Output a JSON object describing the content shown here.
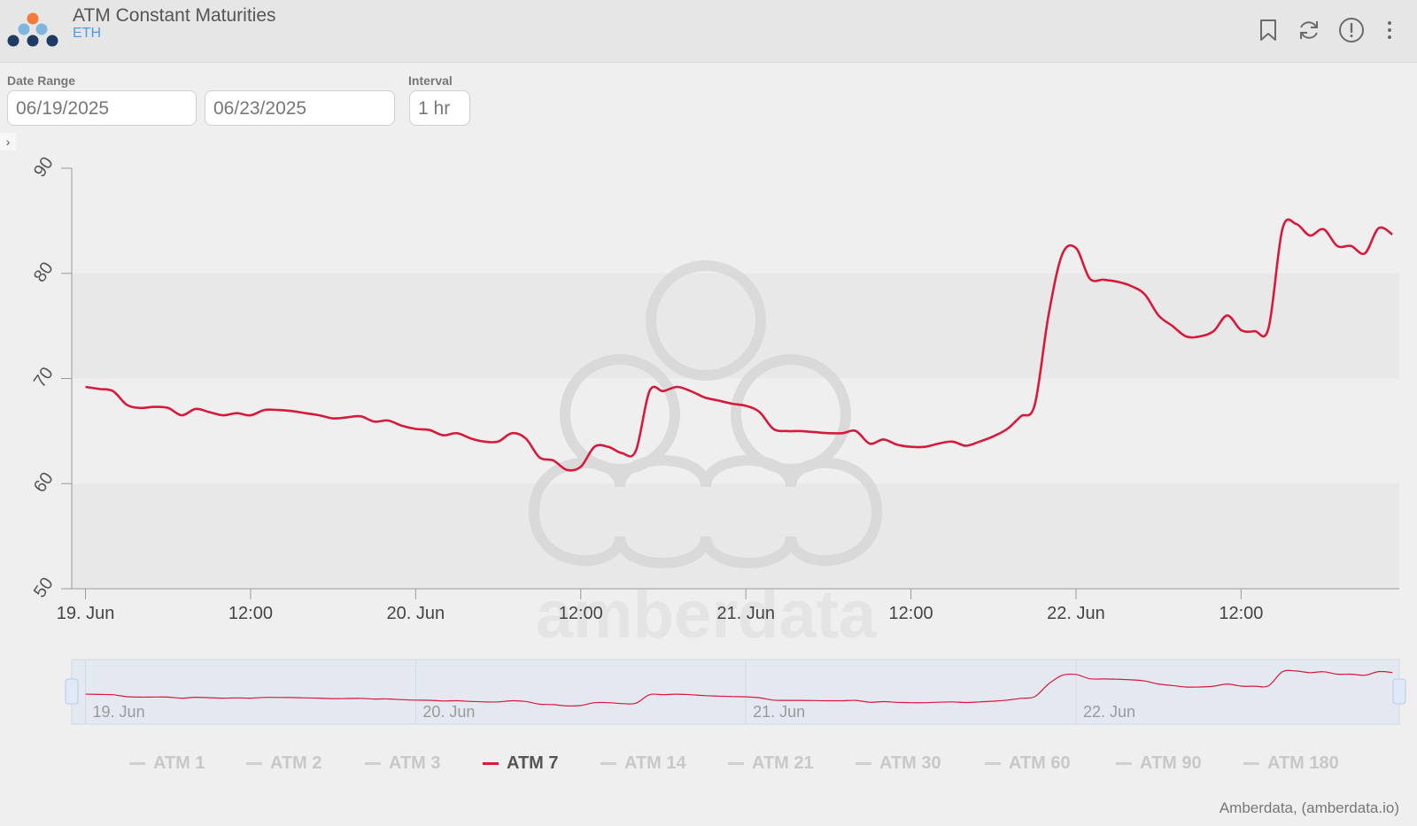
{
  "header": {
    "title": "ATM Constant Maturities",
    "subtitle": "ETH",
    "icons": [
      "bookmark-icon",
      "refresh-icon",
      "info-icon",
      "more-icon"
    ]
  },
  "controls": {
    "date_range_label": "Date Range",
    "start_date": "06/19/2025",
    "end_date": "06/23/2025",
    "interval_label": "Interval",
    "interval": "1 hr",
    "toggle_glyph": "›"
  },
  "watermark": "amberdata",
  "credit": "Amberdata, (amberdata.io)",
  "colors": {
    "series": "#d61a3c",
    "logo_orange": "#f07b3b",
    "logo_blue": "#7fb6e0",
    "logo_navy": "#1f3a63",
    "subtitle": "#4a9be8"
  },
  "chart_data": {
    "type": "line",
    "x_unit": "hours since 19. Jun 00:00",
    "xlim": [
      -1,
      95.5
    ],
    "ylim": [
      50,
      90
    ],
    "y_ticks": [
      50,
      60,
      70,
      80,
      90
    ],
    "x_ticks": [
      {
        "x": 0,
        "label": "19. Jun"
      },
      {
        "x": 12,
        "label": "12:00"
      },
      {
        "x": 24,
        "label": "20. Jun"
      },
      {
        "x": 36,
        "label": "12:00"
      },
      {
        "x": 48,
        "label": "21. Jun"
      },
      {
        "x": 60,
        "label": "12:00"
      },
      {
        "x": 72,
        "label": "22. Jun"
      },
      {
        "x": 84,
        "label": "12:00"
      }
    ],
    "navigator_labels": [
      {
        "x": 0,
        "label": "19. Jun"
      },
      {
        "x": 24,
        "label": "20. Jun"
      },
      {
        "x": 48,
        "label": "21. Jun"
      },
      {
        "x": 72,
        "label": "22. Jun"
      }
    ],
    "grid": "alternating horizontal bands",
    "legend": [
      "ATM 1",
      "ATM 2",
      "ATM 3",
      "ATM 7",
      "ATM 14",
      "ATM 21",
      "ATM 30",
      "ATM 60",
      "ATM 90",
      "ATM 180"
    ],
    "active_series": "ATM 7",
    "series": [
      {
        "name": "ATM 7",
        "color": "#d61a3c",
        "points": [
          [
            0,
            69.2
          ],
          [
            1,
            69.0
          ],
          [
            2,
            68.8
          ],
          [
            3,
            67.5
          ],
          [
            4,
            67.2
          ],
          [
            5,
            67.3
          ],
          [
            6,
            67.2
          ],
          [
            7,
            66.5
          ],
          [
            8,
            67.1
          ],
          [
            9,
            66.8
          ],
          [
            10,
            66.5
          ],
          [
            11,
            66.7
          ],
          [
            12,
            66.5
          ],
          [
            13,
            67.0
          ],
          [
            14,
            67.0
          ],
          [
            15,
            66.9
          ],
          [
            16,
            66.7
          ],
          [
            17,
            66.5
          ],
          [
            18,
            66.2
          ],
          [
            19,
            66.3
          ],
          [
            20,
            66.4
          ],
          [
            21,
            65.9
          ],
          [
            22,
            66.0
          ],
          [
            23,
            65.5
          ],
          [
            24,
            65.2
          ],
          [
            25,
            65.1
          ],
          [
            26,
            64.6
          ],
          [
            27,
            64.8
          ],
          [
            28,
            64.3
          ],
          [
            29,
            64.0
          ],
          [
            30,
            64.0
          ],
          [
            31,
            64.8
          ],
          [
            32,
            64.3
          ],
          [
            33,
            62.5
          ],
          [
            34,
            62.2
          ],
          [
            35,
            61.3
          ],
          [
            36,
            61.6
          ],
          [
            37,
            63.5
          ],
          [
            38,
            63.5
          ],
          [
            39,
            62.9
          ],
          [
            40,
            63.1
          ],
          [
            41,
            68.8
          ],
          [
            42,
            68.8
          ],
          [
            43,
            69.2
          ],
          [
            44,
            68.8
          ],
          [
            45,
            68.2
          ],
          [
            46,
            67.9
          ],
          [
            47,
            67.6
          ],
          [
            48,
            67.4
          ],
          [
            49,
            66.8
          ],
          [
            50,
            65.2
          ],
          [
            51,
            65.0
          ],
          [
            52,
            65.0
          ],
          [
            53,
            64.9
          ],
          [
            54,
            64.8
          ],
          [
            55,
            64.8
          ],
          [
            56,
            65.0
          ],
          [
            57,
            63.8
          ],
          [
            58,
            64.2
          ],
          [
            59,
            63.7
          ],
          [
            60,
            63.5
          ],
          [
            61,
            63.5
          ],
          [
            62,
            63.8
          ],
          [
            63,
            64.0
          ],
          [
            64,
            63.6
          ],
          [
            65,
            64.0
          ],
          [
            66,
            64.5
          ],
          [
            67,
            65.2
          ],
          [
            68,
            66.4
          ],
          [
            69,
            67.5
          ],
          [
            70,
            76.0
          ],
          [
            71,
            81.8
          ],
          [
            72,
            82.4
          ],
          [
            73,
            79.5
          ],
          [
            74,
            79.4
          ],
          [
            75,
            79.2
          ],
          [
            76,
            78.8
          ],
          [
            77,
            78.0
          ],
          [
            78,
            76.0
          ],
          [
            79,
            75.0
          ],
          [
            80,
            74.0
          ],
          [
            81,
            74.0
          ],
          [
            82,
            74.5
          ],
          [
            83,
            76.0
          ],
          [
            84,
            74.6
          ],
          [
            85,
            74.5
          ],
          [
            86,
            74.8
          ],
          [
            87,
            84.2
          ],
          [
            88,
            84.7
          ],
          [
            89,
            83.6
          ],
          [
            90,
            84.2
          ],
          [
            91,
            82.6
          ],
          [
            92,
            82.6
          ],
          [
            93,
            81.9
          ],
          [
            94,
            84.3
          ],
          [
            95,
            83.7
          ]
        ]
      }
    ]
  }
}
